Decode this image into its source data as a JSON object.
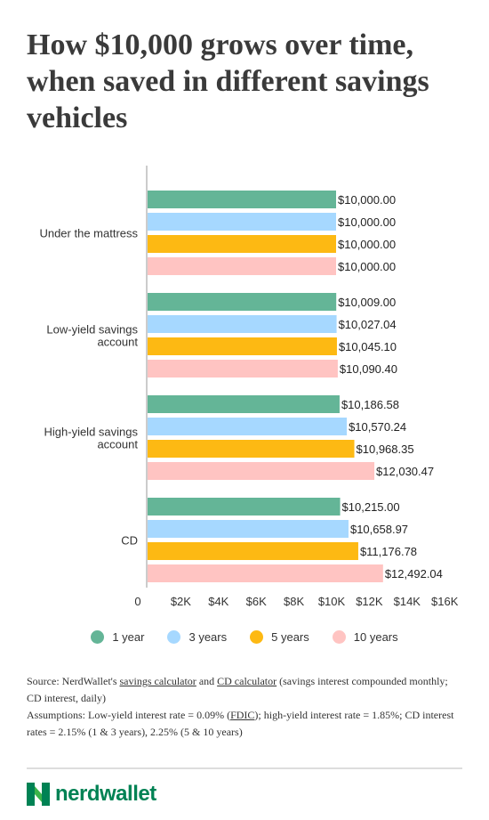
{
  "title": "How $10,000 grows over time, when saved in different savings vehicles",
  "chart_data": {
    "type": "bar",
    "orientation": "horizontal",
    "categories": [
      "Under the mattress",
      "Low-yield savings account",
      "High-yield savings account",
      "CD"
    ],
    "category_lines": [
      [
        "Under the mattress"
      ],
      [
        "Low-yield savings",
        "account"
      ],
      [
        "High-yield savings",
        "account"
      ],
      [
        "CD"
      ]
    ],
    "series": [
      {
        "name": "1 year",
        "color": "#64b597",
        "values": [
          10000.0,
          10009.0,
          10186.58,
          10215.0
        ],
        "labels": [
          "$10,000.00",
          "$10,009.00",
          "$10,186.58",
          "$10,215.00"
        ]
      },
      {
        "name": "3 years",
        "color": "#a6d8ff",
        "values": [
          10000.0,
          10027.04,
          10570.24,
          10658.97
        ],
        "labels": [
          "$10,000.00",
          "$10,027.04",
          "$10,570.24",
          "$10,658.97"
        ]
      },
      {
        "name": "5 years",
        "color": "#fdb913",
        "values": [
          10000.0,
          10045.1,
          10968.35,
          11176.78
        ],
        "labels": [
          "$10,000.00",
          "$10,045.10",
          "$10,968.35",
          "$11,176.78"
        ]
      },
      {
        "name": "10 years",
        "color": "#ffc4c2",
        "values": [
          10000.0,
          10090.4,
          12030.47,
          12492.04
        ],
        "labels": [
          "$10,000.00",
          "$10,090.40",
          "$12,030.47",
          "$12,492.04"
        ]
      }
    ],
    "x_ticks": [
      {
        "value": 0,
        "label": "0"
      },
      {
        "value": 2000,
        "label": "$2K"
      },
      {
        "value": 4000,
        "label": "$4K"
      },
      {
        "value": 6000,
        "label": "$6K"
      },
      {
        "value": 8000,
        "label": "$8K"
      },
      {
        "value": 10000,
        "label": "$10K"
      },
      {
        "value": 12000,
        "label": "$12K"
      },
      {
        "value": 14000,
        "label": "$14K"
      },
      {
        "value": 16000,
        "label": "$16K"
      }
    ],
    "legend_position": "bottom",
    "grid": false
  },
  "source": {
    "prefix": "Source: NerdWallet's ",
    "link1": "savings calculator",
    "and": " and ",
    "link2": "CD calculator",
    "suffix": " (savings interest compounded monthly; CD interest, daily)"
  },
  "assumptions": {
    "prefix": "Assumptions: Low-yield interest rate = 0.09% (",
    "link": "FDIC",
    "suffix": "); high-yield interest rate = 1.85%; CD interest rates = 2.15% (1 & 3 years), 2.25% (5 & 10 years)"
  },
  "brand": {
    "name": "nerdwallet",
    "green": "#008254",
    "light_green": "#3cb44a"
  }
}
